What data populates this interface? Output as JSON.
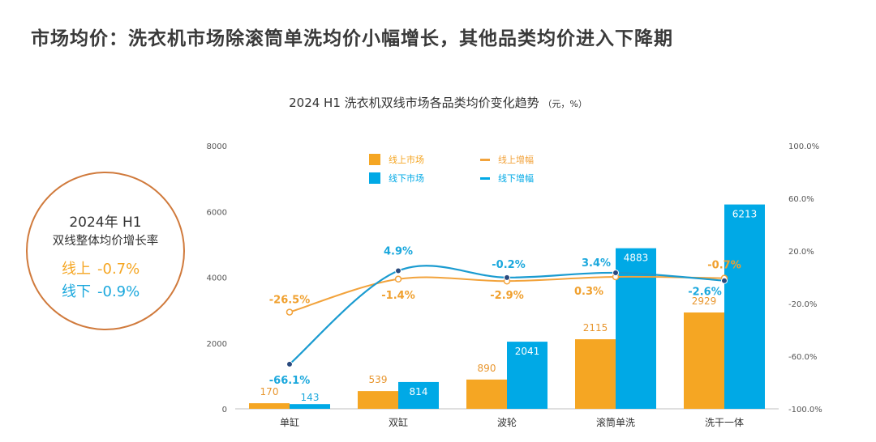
{
  "headline": "市场均价：洗衣机市场除滚筒单洗均价小幅增长，其他品类均价进入下降期",
  "summary": {
    "year": "2024年 H1",
    "desc": "双线整体均价增长率",
    "online_label": "线上",
    "online_value": "-0.7%",
    "offline_label": "线下",
    "offline_value": "-0.9%"
  },
  "colors": {
    "online": "#F5A623",
    "offline": "#00A9E6",
    "online_line": "#F2A33C",
    "offline_line": "#1A9BD0",
    "circle_border": "#D07A3C"
  },
  "chart_data": {
    "type": "bar",
    "title": "2024 H1 洗衣机双线市场各品类均价变化趋势",
    "title_unit": "（元，%）",
    "categories": [
      "单缸",
      "双缸",
      "波轮",
      "滚筒单洗",
      "洗干一体"
    ],
    "series": [
      {
        "name": "线上市场",
        "type": "bar",
        "axis": "left",
        "values": [
          170,
          539,
          890,
          2115,
          2929
        ]
      },
      {
        "name": "线下市场",
        "type": "bar",
        "axis": "left",
        "values": [
          143,
          814,
          2041,
          4883,
          6213
        ]
      },
      {
        "name": "线上增幅",
        "type": "line",
        "axis": "right",
        "values": [
          -26.5,
          -1.4,
          -2.9,
          0.3,
          -0.7
        ],
        "labels": [
          "-26.5%",
          "-1.4%",
          "-2.9%",
          "0.3%",
          "-0.7%"
        ]
      },
      {
        "name": "线下增幅",
        "type": "line",
        "axis": "right",
        "values": [
          -66.1,
          4.9,
          -0.2,
          3.4,
          -2.6
        ],
        "labels": [
          "-66.1%",
          "4.9%",
          "-0.2%",
          "3.4%",
          "-2.6%"
        ]
      }
    ],
    "y_left": {
      "min": 0,
      "max": 8000,
      "ticks": [
        "0",
        "2000",
        "4000",
        "6000",
        "8000"
      ]
    },
    "y_right": {
      "min": -100,
      "max": 100,
      "ticks": [
        "-100.0%",
        "-60.0%",
        "-20.0%",
        "20.0%",
        "60.0%",
        "100.0%"
      ]
    },
    "grid": false,
    "legend_position": "top-center"
  }
}
